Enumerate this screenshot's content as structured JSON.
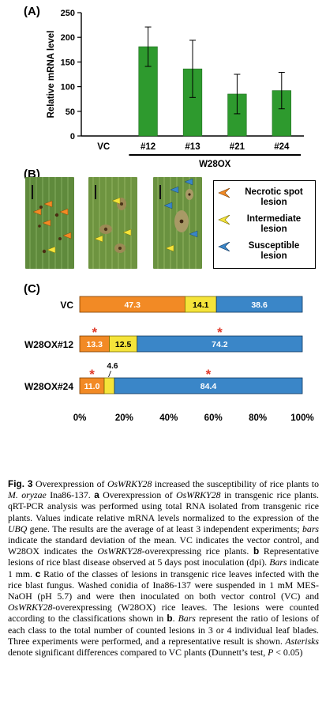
{
  "panel_labels": {
    "a": "(A)",
    "b": "(B)",
    "c": "(C)"
  },
  "chart_data": [
    {
      "type": "bar",
      "panel": "A",
      "ylabel": "Relative mRNA level",
      "ylim": [
        0,
        250
      ],
      "yticks": [
        "0",
        "50",
        "100",
        "150",
        "200",
        "250"
      ],
      "categories": [
        "VC",
        "#12",
        "#13",
        "#21",
        "#24"
      ],
      "values": [
        0,
        181,
        136,
        85,
        92
      ],
      "errors": [
        0,
        40,
        58,
        40,
        37
      ],
      "group_label": "W28OX",
      "bar_color": "#2e9a2e"
    },
    {
      "type": "bar",
      "orientation": "horizontal-stacked",
      "panel": "C",
      "categories": [
        "VC",
        "W28OX#12",
        "W28OX#24"
      ],
      "series": [
        {
          "values": [
            47.3,
            13.3,
            11.0
          ],
          "labels": [
            "47.3",
            "13.3",
            "11.0"
          ],
          "color": "#f28a25"
        },
        {
          "values": [
            14.1,
            12.5,
            4.6
          ],
          "labels": [
            "14.1",
            "12.5",
            "4.6"
          ],
          "color": "#f5e43a"
        },
        {
          "values": [
            38.6,
            74.2,
            84.4
          ],
          "labels": [
            "38.6",
            "74.2",
            "84.4"
          ],
          "color": "#3a86c8"
        }
      ],
      "xlim": [
        0,
        100
      ],
      "xticks": [
        "0%",
        "20%",
        "40%",
        "60%",
        "80%",
        "100%"
      ],
      "asterisk": "*",
      "asterisk_color": "#e03a2a"
    }
  ],
  "legend": {
    "items": [
      {
        "label": "Necrotic spot lesion",
        "color": "#f28a25"
      },
      {
        "label": "Intermediate lesion",
        "color": "#f5e43a"
      },
      {
        "label": "Susceptible lesion",
        "color": "#3a86c8"
      }
    ]
  },
  "caption": {
    "fig": "Fig. 3",
    "t1": " Overexpression of ",
    "g1": "OsWRKY28",
    "t2": " increased the susceptibility of rice plants to ",
    "sp": "M. oryzae",
    "t3": " Ina86-137. ",
    "a": "a",
    "t4": " Overexpression of ",
    "g2": "OsWRKY28",
    "t5": " in transgenic rice plants. qRT-PCR analysis was performed using total RNA isolated from transgenic rice plants. Values indicate relative mRNA levels normalized to the expression of the ",
    "ubq": "UBQ",
    "t6": " gene. The results are the average of at least 3 independent experiments; ",
    "bars1": "bars",
    "t7": " indicate the standard deviation of the mean. VC indicates the vector control, and W28OX indicates the ",
    "g3": "OsWRKY28",
    "t8": "-overexpressing rice plants. ",
    "b": "b",
    "t9": " Representative lesions of rice blast disease observed at 5 days post inoculation (dpi). ",
    "bars2": "Bars",
    "t10": " indicate 1 mm. ",
    "c": "c",
    "t11": " Ratio of the classes of lesions in transgenic rice leaves infected with the rice blast fungus. Washed conidia of Ina86-137 were suspended in 1 mM MES-NaOH (pH 5.7) and were then inoculated on both vector control (VC) and ",
    "g4": "OsWRKY28",
    "t12": "-overexpressing (W28OX) rice leaves. The lesions were counted according to the classifications shown in ",
    "b2": "b",
    "t13": ". ",
    "bars3": "Bars",
    "t14": " represent the ratio of lesions of each class to the total number of counted lesions in 3 or 4 individual leaf blades. Three experiments were performed, and a representative result is shown. ",
    "ast": "Asterisks",
    "t15": " denote significant differences compared to VC plants (Dunnett’s test, ",
    "p": "P",
    "t16": " < 0.05)"
  }
}
